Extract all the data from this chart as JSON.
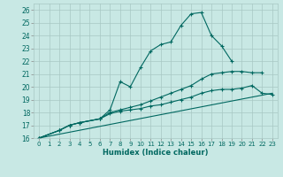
{
  "xlabel": "Humidex (Indice chaleur)",
  "ylabel": "",
  "background_color": "#c8e8e4",
  "grid_color": "#a8c8c4",
  "line_color": "#006860",
  "xlim": [
    -0.5,
    23.5
  ],
  "ylim": [
    16,
    26.5
  ],
  "xticks": [
    0,
    1,
    2,
    3,
    4,
    5,
    6,
    7,
    8,
    9,
    10,
    11,
    12,
    13,
    14,
    15,
    16,
    17,
    18,
    19,
    20,
    21,
    22,
    23
  ],
  "yticks": [
    16,
    17,
    18,
    19,
    20,
    21,
    22,
    23,
    24,
    25,
    26
  ],
  "series": [
    {
      "x": [
        0,
        2,
        3,
        4,
        6,
        7,
        8,
        9,
        10,
        11,
        12,
        13,
        14,
        15,
        16,
        17,
        18,
        19
      ],
      "y": [
        16.0,
        16.6,
        17.0,
        17.2,
        17.5,
        18.2,
        20.4,
        20.0,
        21.5,
        22.8,
        23.3,
        23.5,
        24.8,
        25.7,
        25.8,
        24.0,
        23.2,
        22.0
      ],
      "markers": true
    },
    {
      "x": [
        0,
        2,
        3,
        4,
        6,
        7,
        8,
        9,
        10,
        11,
        12,
        13,
        14,
        15,
        16,
        17,
        18,
        19,
        20,
        21,
        22
      ],
      "y": [
        16.0,
        16.6,
        17.0,
        17.2,
        17.5,
        18.0,
        18.2,
        18.4,
        18.6,
        18.9,
        19.2,
        19.5,
        19.8,
        20.1,
        20.6,
        21.0,
        21.1,
        21.2,
        21.2,
        21.1,
        21.1
      ],
      "markers": true
    },
    {
      "x": [
        0,
        2,
        3,
        4,
        6,
        7,
        8,
        9,
        10,
        11,
        12,
        13,
        14,
        15,
        16,
        17,
        18,
        19,
        20,
        21,
        22,
        23
      ],
      "y": [
        16.0,
        16.6,
        17.0,
        17.2,
        17.5,
        17.9,
        18.1,
        18.2,
        18.3,
        18.5,
        18.6,
        18.8,
        19.0,
        19.2,
        19.5,
        19.7,
        19.8,
        19.8,
        19.9,
        20.1,
        19.5,
        19.4
      ],
      "markers": true
    },
    {
      "x": [
        0,
        23
      ],
      "y": [
        16.0,
        19.5
      ],
      "markers": false
    }
  ]
}
